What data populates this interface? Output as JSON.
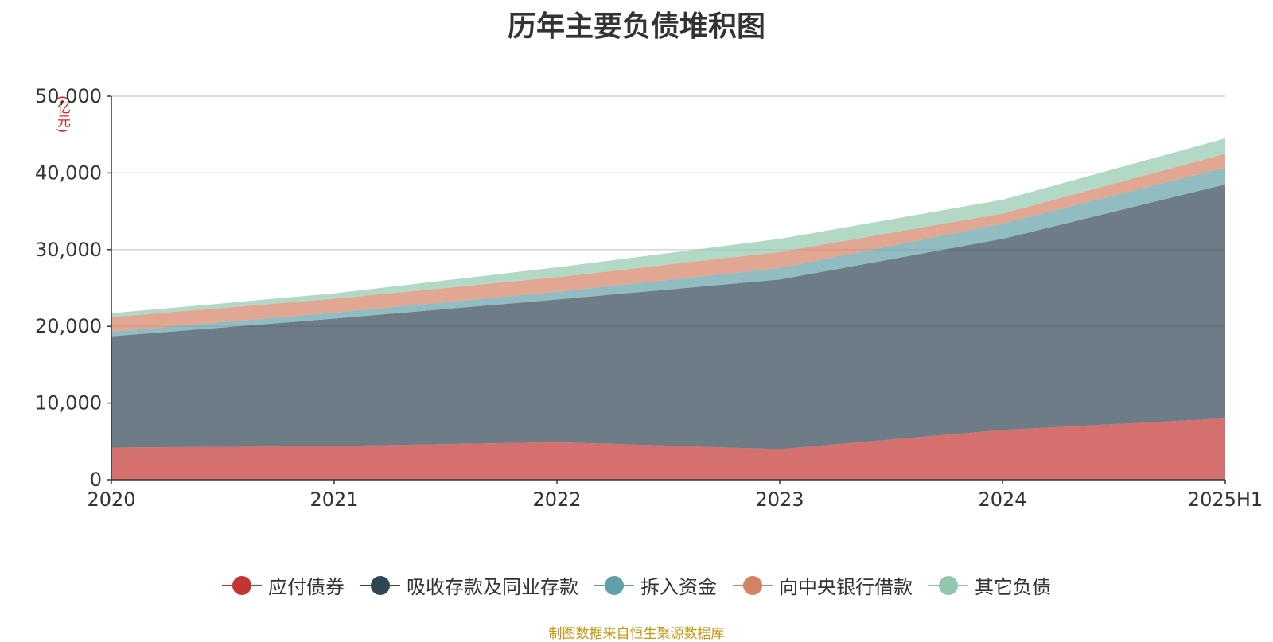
{
  "chart_data": {
    "type": "area",
    "stacked": true,
    "title": "历年主要负债堆积图",
    "unit_label": "(亿元)",
    "categories": [
      "2020",
      "2021",
      "2022",
      "2023",
      "2024",
      "2025H1"
    ],
    "ylim": [
      0,
      50000
    ],
    "yticks": [
      0,
      10000,
      20000,
      30000,
      40000,
      50000
    ],
    "ytick_labels": [
      "0",
      "10,000",
      "20,000",
      "30,000",
      "40,000",
      "50,000"
    ],
    "grid": true,
    "legend_position": "bottom",
    "series": [
      {
        "name": "应付债券",
        "color": "#c23531",
        "values": [
          4200,
          4400,
          4900,
          4000,
          6500,
          8000
        ]
      },
      {
        "name": "吸收存款及同业存款",
        "color": "#2f4554",
        "values": [
          14500,
          16600,
          18600,
          22100,
          24900,
          30500
        ]
      },
      {
        "name": "拆入资金",
        "color": "#61a0a8",
        "values": [
          600,
          800,
          1000,
          1500,
          2000,
          2200
        ]
      },
      {
        "name": "向中央银行借款",
        "color": "#d48265",
        "values": [
          1900,
          1800,
          1900,
          2100,
          1300,
          1800
        ]
      },
      {
        "name": "其它负债",
        "color": "#91c7ae",
        "values": [
          500,
          700,
          1300,
          1700,
          1800,
          2000
        ]
      }
    ],
    "source": "制图数据来自恒生聚源数据库"
  }
}
